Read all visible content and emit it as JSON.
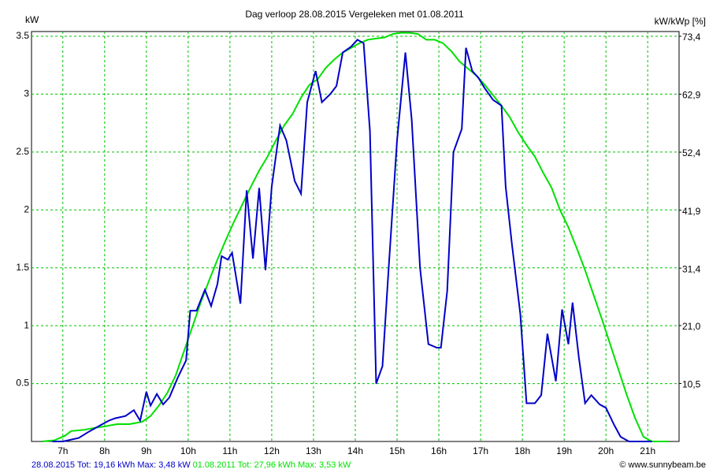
{
  "chart_data": {
    "type": "line",
    "title": "Dag  verloop 28.08.2015   Vergeleken met 01.08.2011",
    "ylabel": "kW",
    "y2label": "kW/kWp [%]",
    "footer": "© www.sunnybeam.be",
    "xlim": [
      6.25,
      21.75
    ],
    "xticks": [
      {
        "value": 7,
        "label": "7h"
      },
      {
        "value": 8,
        "label": "8h"
      },
      {
        "value": 9,
        "label": "9h"
      },
      {
        "value": 10,
        "label": "10h"
      },
      {
        "value": 11,
        "label": "11h"
      },
      {
        "value": 12,
        "label": "12h"
      },
      {
        "value": 13,
        "label": "13h"
      },
      {
        "value": 14,
        "label": "14h"
      },
      {
        "value": 15,
        "label": "15h"
      },
      {
        "value": 16,
        "label": "16h"
      },
      {
        "value": 17,
        "label": "17h"
      },
      {
        "value": 18,
        "label": "18h"
      },
      {
        "value": 19,
        "label": "19h"
      },
      {
        "value": 20,
        "label": "20h"
      },
      {
        "value": 21,
        "label": "21h"
      }
    ],
    "ylim": [
      0,
      3.5
    ],
    "yticks": [
      0.5,
      1,
      1.5,
      2,
      2.5,
      3,
      3.5
    ],
    "y2lim": [
      0,
      73.4
    ],
    "y2ticks": [
      {
        "value": 10.5,
        "label": "10,5"
      },
      {
        "value": 21.0,
        "label": "21,0"
      },
      {
        "value": 31.4,
        "label": "31,4"
      },
      {
        "value": 41.9,
        "label": "41,9"
      },
      {
        "value": 52.4,
        "label": "52,4"
      },
      {
        "value": 62.9,
        "label": "62,9"
      },
      {
        "value": 73.4,
        "label": "73,4"
      }
    ],
    "grid": true,
    "grid_color": "#00c000",
    "series": [
      {
        "name": "28.08.2015 Tot: 19,16 kWh Max: 3,48 kW",
        "color": "#0000c8",
        "x": [
          6.75,
          7.0,
          7.38,
          7.6,
          7.9,
          8.1,
          8.25,
          8.5,
          8.7,
          8.85,
          9.0,
          9.1,
          9.25,
          9.4,
          9.55,
          9.75,
          9.95,
          10.05,
          10.2,
          10.4,
          10.55,
          10.7,
          10.8,
          10.95,
          11.05,
          11.25,
          11.4,
          11.55,
          11.7,
          11.85,
          12.0,
          12.2,
          12.35,
          12.55,
          12.7,
          12.85,
          13.05,
          13.2,
          13.4,
          13.55,
          13.7,
          13.9,
          14.05,
          14.2,
          14.35,
          14.5,
          14.65,
          14.8,
          15.0,
          15.2,
          15.35,
          15.55,
          15.75,
          15.95,
          16.05,
          16.2,
          16.35,
          16.55,
          16.65,
          16.8,
          16.95,
          17.1,
          17.3,
          17.5,
          17.6,
          17.75,
          17.95,
          18.1,
          18.3,
          18.45,
          18.6,
          18.8,
          18.95,
          19.1,
          19.2,
          19.35,
          19.5,
          19.65,
          19.85,
          20.0,
          20.2,
          20.35,
          20.55,
          21.1
        ],
        "values": [
          0,
          0,
          0.03,
          0.08,
          0.14,
          0.18,
          0.2,
          0.22,
          0.27,
          0.18,
          0.43,
          0.31,
          0.41,
          0.32,
          0.38,
          0.55,
          0.7,
          1.13,
          1.13,
          1.31,
          1.17,
          1.36,
          1.6,
          1.57,
          1.63,
          1.19,
          2.17,
          1.58,
          2.19,
          1.48,
          2.2,
          2.73,
          2.6,
          2.25,
          2.14,
          2.93,
          3.2,
          2.93,
          3.0,
          3.07,
          3.36,
          3.41,
          3.47,
          3.44,
          2.68,
          0.5,
          0.65,
          1.5,
          2.6,
          3.36,
          2.78,
          1.5,
          0.84,
          0.81,
          0.81,
          1.3,
          2.5,
          2.7,
          3.4,
          3.2,
          3.14,
          3.05,
          2.95,
          2.9,
          2.2,
          1.7,
          1.1,
          0.33,
          0.33,
          0.4,
          0.93,
          0.52,
          1.14,
          0.84,
          1.2,
          0.73,
          0.33,
          0.4,
          0.32,
          0.29,
          0.14,
          0.04,
          0,
          0
        ]
      },
      {
        "name": "01.08.2011 Tot: 27,96 kWh Max: 3,53 kW",
        "color": "#00e000",
        "x": [
          6.5,
          6.8,
          7.05,
          7.2,
          7.5,
          7.8,
          8.0,
          8.3,
          8.6,
          8.9,
          9.1,
          9.3,
          9.5,
          9.7,
          9.9,
          10.1,
          10.3,
          10.5,
          10.7,
          10.9,
          11.1,
          11.3,
          11.5,
          11.7,
          11.9,
          12.1,
          12.3,
          12.5,
          12.7,
          12.9,
          13.1,
          13.3,
          13.5,
          13.7,
          13.9,
          14.1,
          14.3,
          14.5,
          14.7,
          14.9,
          15.1,
          15.3,
          15.5,
          15.7,
          15.9,
          16.1,
          16.3,
          16.5,
          16.7,
          16.9,
          17.1,
          17.3,
          17.5,
          17.7,
          17.9,
          18.1,
          18.3,
          18.5,
          18.7,
          18.9,
          19.1,
          19.3,
          19.5,
          19.7,
          19.9,
          20.1,
          20.3,
          20.5,
          20.7,
          20.9,
          21.1,
          21.5
        ],
        "values": [
          0,
          0.01,
          0.05,
          0.09,
          0.1,
          0.12,
          0.13,
          0.15,
          0.15,
          0.17,
          0.22,
          0.31,
          0.42,
          0.57,
          0.78,
          0.99,
          1.2,
          1.39,
          1.57,
          1.74,
          1.9,
          2.05,
          2.2,
          2.34,
          2.46,
          2.6,
          2.73,
          2.83,
          2.97,
          3.08,
          3.13,
          3.23,
          3.3,
          3.36,
          3.4,
          3.44,
          3.47,
          3.48,
          3.49,
          3.52,
          3.53,
          3.53,
          3.52,
          3.47,
          3.47,
          3.44,
          3.37,
          3.28,
          3.22,
          3.16,
          3.08,
          2.99,
          2.9,
          2.8,
          2.67,
          2.56,
          2.46,
          2.32,
          2.19,
          2.0,
          1.85,
          1.67,
          1.48,
          1.27,
          1.06,
          0.84,
          0.62,
          0.4,
          0.2,
          0.04,
          0,
          0
        ]
      }
    ]
  }
}
